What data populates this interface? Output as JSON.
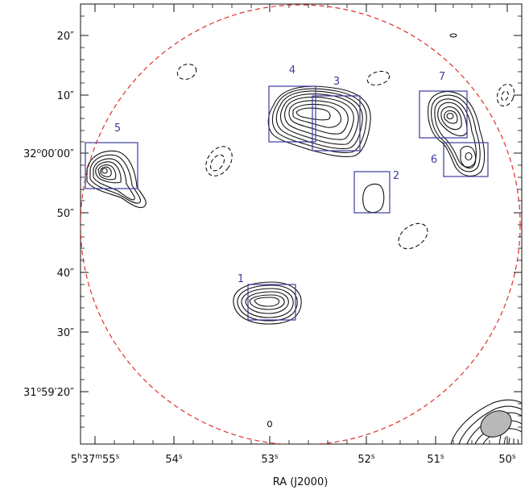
{
  "figure": {
    "x_axis_title": "RA (J2000)",
    "x_ticks": [
      {
        "h": "5",
        "m": "37",
        "s": "55",
        "label": "55"
      },
      {
        "label": "54"
      },
      {
        "label": "53"
      },
      {
        "label": "52"
      },
      {
        "label": "51"
      },
      {
        "label": "50"
      }
    ],
    "y_ticks": [
      {
        "label": "20″"
      },
      {
        "label": "10″"
      },
      {
        "deg": "32",
        "amin": "00",
        "asec": "00"
      },
      {
        "label": "50″"
      },
      {
        "label": "40″"
      },
      {
        "label": "30″"
      },
      {
        "deg": "31",
        "amin": "59",
        "asec": "20"
      }
    ],
    "regions": [
      {
        "id": "1"
      },
      {
        "id": "2"
      },
      {
        "id": "3"
      },
      {
        "id": "4"
      },
      {
        "id": "5"
      },
      {
        "id": "6"
      },
      {
        "id": "7"
      }
    ],
    "colors": {
      "primary_beam_circle": "#e03030",
      "region_boxes": "#3c3ca0",
      "region_labels": "#3c3ca0",
      "beam_ellipse": "#b8b8b8",
      "contours": "#111111"
    }
  }
}
